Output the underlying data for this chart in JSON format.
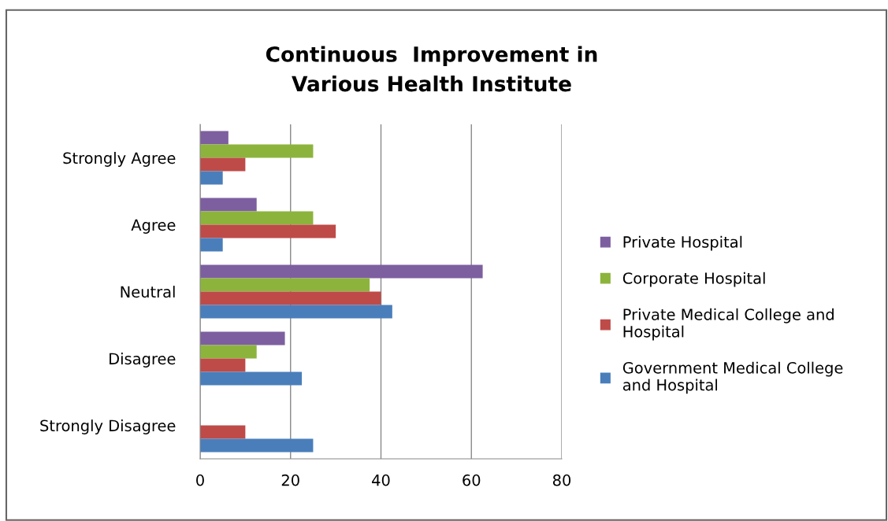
{
  "chart_data": {
    "type": "bar",
    "orientation": "horizontal",
    "title": "Continuous  Improvement in\nVarious Health Institute",
    "categories": [
      "Strongly Agree",
      "Agree",
      "Neutral",
      "Disagree",
      "Strongly Disagree"
    ],
    "series": [
      {
        "name": "Private Hospital",
        "color": "#7d5fa0",
        "values": [
          6.25,
          12.5,
          62.5,
          18.75,
          0
        ]
      },
      {
        "name": "Corporate Hospital",
        "color": "#8cb43c",
        "values": [
          25,
          25,
          37.5,
          12.5,
          0
        ]
      },
      {
        "name": "Private Medical College and\nHospital",
        "color": "#be4b48",
        "values": [
          10,
          30,
          40,
          10,
          10
        ]
      },
      {
        "name": "Government Medical College\nand Hospital",
        "color": "#4a7ebb",
        "values": [
          5,
          5,
          42.5,
          22.5,
          25
        ]
      }
    ],
    "xlim": [
      0,
      80
    ],
    "xticks": [
      0,
      20,
      40,
      60,
      80
    ],
    "grid": "x",
    "legend": "right"
  }
}
